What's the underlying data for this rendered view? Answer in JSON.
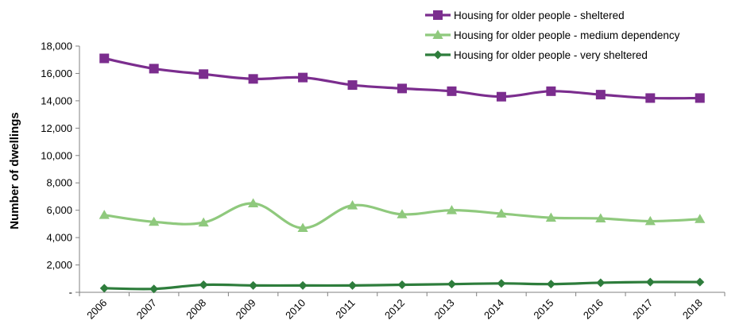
{
  "chart_data": {
    "type": "line",
    "title": "",
    "xlabel": "",
    "ylabel": "Number of dwellings",
    "ylim": [
      0,
      18000
    ],
    "ytick_step": 2000,
    "ytick_labels": [
      "-",
      "2,000",
      "4,000",
      "6,000",
      "8,000",
      "10,000",
      "12,000",
      "14,000",
      "16,000",
      "18,000"
    ],
    "grid": false,
    "legend_position": "top-right",
    "categories": [
      "2006",
      "2007",
      "2008",
      "2009",
      "2010",
      "2011",
      "2012",
      "2013",
      "2014",
      "2015",
      "2016",
      "2017",
      "2018"
    ],
    "series": [
      {
        "name": "Housing for older people - sheltered",
        "color": "#7b2d8e",
        "marker": "square",
        "values": [
          17100,
          16350,
          15950,
          15600,
          15700,
          15150,
          14900,
          14700,
          14300,
          14700,
          14450,
          14200,
          14200
        ]
      },
      {
        "name": "Housing for older people - medium dependency",
        "color": "#8fc97d",
        "marker": "triangle",
        "values": [
          5650,
          5150,
          5100,
          6500,
          4700,
          6350,
          5700,
          6000,
          5750,
          5450,
          5400,
          5200,
          5350
        ]
      },
      {
        "name": "Housing for older people - very sheltered",
        "color": "#2e7d3c",
        "marker": "diamond",
        "values": [
          300,
          250,
          550,
          500,
          500,
          500,
          550,
          600,
          650,
          600,
          700,
          750,
          750
        ]
      }
    ]
  }
}
